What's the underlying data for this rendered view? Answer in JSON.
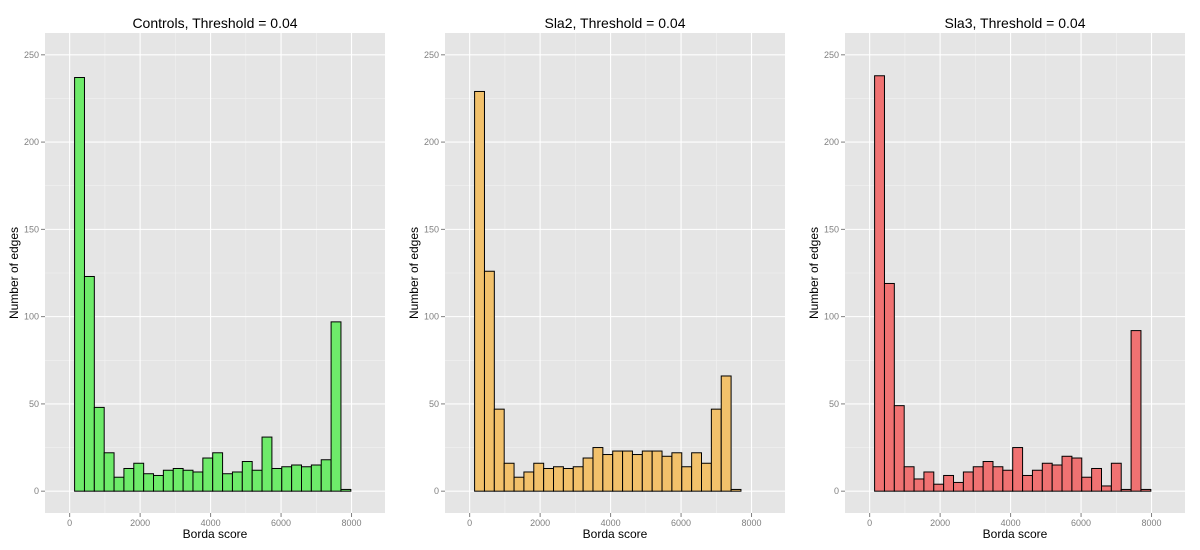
{
  "chart_data": [
    {
      "type": "bar",
      "title": "Controls, Threshold =  0.04",
      "xlabel": "Borda score",
      "ylabel": "Number of edges",
      "bin_width": 280,
      "bin_start": -140,
      "xlim": [
        -700,
        8950
      ],
      "ylim": [
        -12.5,
        262.5
      ],
      "xticks": [
        0,
        2000,
        4000,
        6000,
        8000
      ],
      "yticks": [
        0,
        50,
        100,
        150,
        200,
        250
      ],
      "grid": true,
      "fill_color": "#6eeb6a",
      "values": [
        0,
        237,
        123,
        48,
        22,
        8,
        13,
        16,
        10,
        9,
        12,
        13,
        12,
        11,
        19,
        22,
        10,
        11,
        17,
        12,
        31,
        13,
        14,
        15,
        14,
        15,
        18,
        97,
        1
      ]
    },
    {
      "type": "bar",
      "title": "Sla2, Threshold =  0.04",
      "xlabel": "Borda score",
      "ylabel": "Number of edges",
      "bin_width": 280,
      "bin_start": -140,
      "xlim": [
        -700,
        8950
      ],
      "ylim": [
        -12.5,
        262.5
      ],
      "xticks": [
        0,
        2000,
        4000,
        6000,
        8000
      ],
      "yticks": [
        0,
        50,
        100,
        150,
        200,
        250
      ],
      "grid": true,
      "fill_color": "#f2c16b",
      "values": [
        0,
        229,
        126,
        47,
        16,
        8,
        11,
        16,
        13,
        14,
        13,
        14,
        19,
        25,
        21,
        23,
        23,
        21,
        23,
        23,
        20,
        22,
        14,
        22,
        16,
        47,
        66,
        1
      ]
    },
    {
      "type": "bar",
      "title": "Sla3, Threshold =  0.04",
      "xlabel": "Borda score",
      "ylabel": "Number of edges",
      "bin_width": 280,
      "bin_start": -140,
      "xlim": [
        -700,
        8950
      ],
      "ylim": [
        -12.5,
        262.5
      ],
      "xticks": [
        0,
        2000,
        4000,
        6000,
        8000
      ],
      "yticks": [
        0,
        50,
        100,
        150,
        200,
        250
      ],
      "grid": true,
      "fill_color": "#f07272",
      "values": [
        0,
        238,
        119,
        49,
        14,
        7,
        11,
        4,
        9,
        5,
        11,
        14,
        17,
        14,
        12,
        25,
        9,
        12,
        16,
        15,
        20,
        19,
        8,
        13,
        3,
        16,
        1,
        92,
        1
      ]
    }
  ]
}
